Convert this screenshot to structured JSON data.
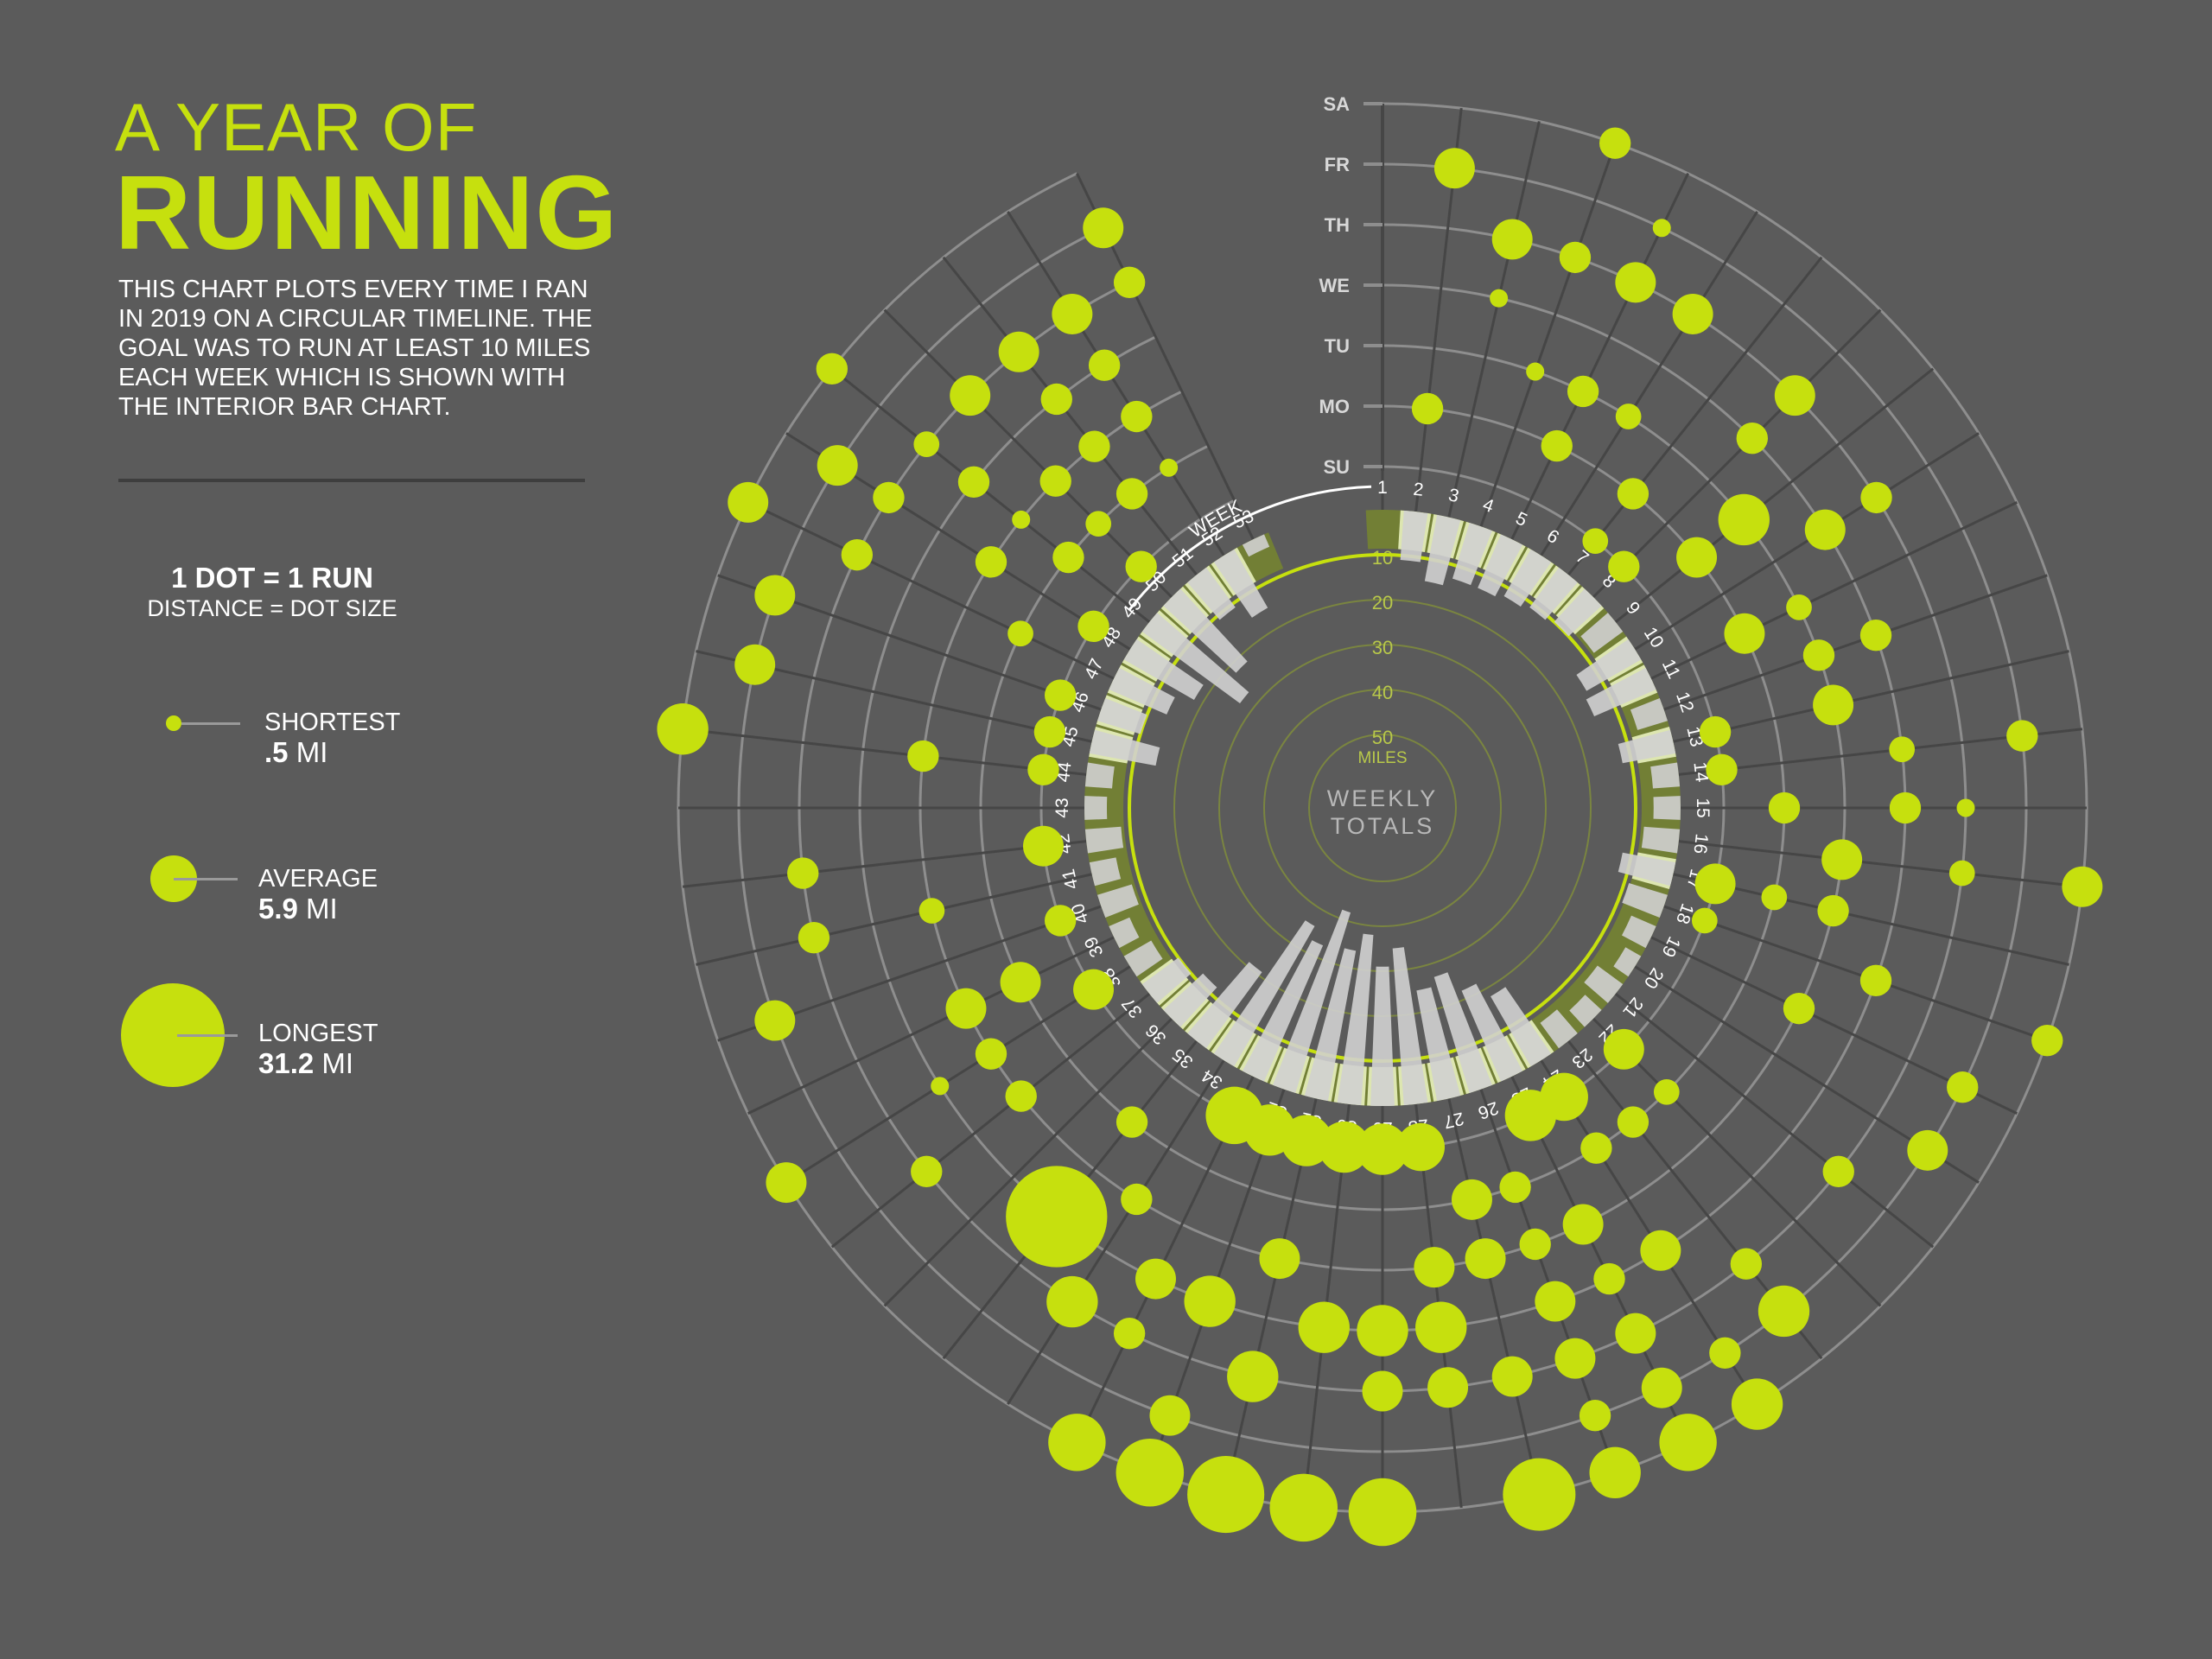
{
  "title": {
    "line1": "A YEAR OF",
    "line2": "RUNNING"
  },
  "intro": "THIS CHART PLOTS EVERY TIME I RAN IN 2019 ON A CIRCULAR TIMELINE. THE GOAL WAS TO RUN AT LEAST 10 MILES EACH WEEK WHICH IS SHOWN WITH THE INTERIOR BAR CHART.",
  "legend": {
    "heading": "1 DOT = 1 RUN",
    "subheading": "DISTANCE = DOT SIZE",
    "items": [
      {
        "label": "SHORTEST",
        "value_num": ".5",
        "value_unit": "MI"
      },
      {
        "label": "AVERAGE",
        "value_num": "5.9",
        "value_unit": "MI"
      },
      {
        "label": "LONGEST",
        "value_num": "31.2",
        "value_unit": "MI"
      }
    ]
  },
  "colors": {
    "background": "#5b5b5b",
    "dot": "#c6e00e",
    "ring_band": "#dde6b0",
    "ring_dark": "#727f35",
    "weekly_bar": "#d0d0d0",
    "grid": "#8e8e8e"
  },
  "chart_data": {
    "type": "scatter",
    "subtitle": "WEEKLY TOTALS",
    "week_axis_label": "WEEK",
    "day_labels": [
      "SU",
      "MO",
      "TU",
      "WE",
      "TH",
      "FR",
      "SA"
    ],
    "weeks": [
      1,
      2,
      3,
      4,
      5,
      6,
      7,
      8,
      9,
      10,
      11,
      12,
      13,
      14,
      15,
      16,
      17,
      18,
      19,
      20,
      21,
      22,
      23,
      24,
      25,
      26,
      27,
      28,
      29,
      30,
      31,
      32,
      33,
      34,
      35,
      36,
      37,
      38,
      39,
      40,
      41,
      42,
      43,
      44,
      45,
      46,
      47,
      48,
      49,
      50,
      51,
      52,
      53
    ],
    "radial_axis": {
      "label": "MILES",
      "ticks": [
        10,
        20,
        30,
        40,
        50
      ],
      "goal": 10
    },
    "weekly_totals": [
      0,
      11,
      15,
      13,
      13,
      12,
      11,
      10,
      8,
      14,
      15,
      7,
      12,
      6,
      6,
      8,
      12,
      9,
      6,
      4,
      7,
      5,
      7,
      18,
      22,
      27,
      25,
      35,
      31,
      38,
      34,
      42,
      33,
      36,
      21,
      12,
      10,
      7,
      5,
      8,
      6,
      8,
      5,
      6,
      15,
      10,
      14,
      18,
      27,
      22,
      11,
      15,
      3
    ],
    "runs": [
      {
        "week": 2,
        "day": 1,
        "miles": 3
      },
      {
        "week": 2,
        "day": 5,
        "miles": 5
      },
      {
        "week": 3,
        "day": 3,
        "miles": 1
      },
      {
        "week": 3,
        "day": 4,
        "miles": 5
      },
      {
        "week": 4,
        "day": 2,
        "miles": 1
      },
      {
        "week": 4,
        "day": 4,
        "miles": 3
      },
      {
        "week": 4,
        "day": 6,
        "miles": 3
      },
      {
        "week": 5,
        "day": 1,
        "miles": 3
      },
      {
        "week": 5,
        "day": 2,
        "miles": 3
      },
      {
        "week": 5,
        "day": 4,
        "miles": 5
      },
      {
        "week": 5,
        "day": 5,
        "miles": 1
      },
      {
        "week": 6,
        "day": 2,
        "miles": 2
      },
      {
        "week": 6,
        "day": 4,
        "miles": 5
      },
      {
        "week": 7,
        "day": 0,
        "miles": 2
      },
      {
        "week": 7,
        "day": 1,
        "miles": 3
      },
      {
        "week": 8,
        "day": 0,
        "miles": 3
      },
      {
        "week": 8,
        "day": 3,
        "miles": 3
      },
      {
        "week": 8,
        "day": 4,
        "miles": 5
      },
      {
        "week": 9,
        "day": 1,
        "miles": 5
      },
      {
        "week": 9,
        "day": 2,
        "miles": 8
      },
      {
        "week": 10,
        "day": 3,
        "miles": 5
      },
      {
        "week": 10,
        "day": 4,
        "miles": 3
      },
      {
        "week": 11,
        "day": 1,
        "miles": 5
      },
      {
        "week": 11,
        "day": 2,
        "miles": 2
      },
      {
        "week": 12,
        "day": 2,
        "miles": 3
      },
      {
        "week": 12,
        "day": 3,
        "miles": 3
      },
      {
        "week": 13,
        "day": 0,
        "miles": 3
      },
      {
        "week": 13,
        "day": 2,
        "miles": 5
      },
      {
        "week": 14,
        "day": 0,
        "miles": 3
      },
      {
        "week": 14,
        "day": 3,
        "miles": 2
      },
      {
        "week": 14,
        "day": 5,
        "miles": 3
      },
      {
        "week": 15,
        "day": 1,
        "miles": 3
      },
      {
        "week": 15,
        "day": 3,
        "miles": 3
      },
      {
        "week": 15,
        "day": 4,
        "miles": 1
      },
      {
        "week": 16,
        "day": 2,
        "miles": 5
      },
      {
        "week": 16,
        "day": 4,
        "miles": 2
      },
      {
        "week": 16,
        "day": 6,
        "miles": 5
      },
      {
        "week": 17,
        "day": 0,
        "miles": 5
      },
      {
        "week": 17,
        "day": 1,
        "miles": 2
      },
      {
        "week": 17,
        "day": 2,
        "miles": 3
      },
      {
        "week": 18,
        "day": 0,
        "miles": 2
      },
      {
        "week": 18,
        "day": 3,
        "miles": 3
      },
      {
        "week": 18,
        "day": 6,
        "miles": 3
      },
      {
        "week": 19,
        "day": 2,
        "miles": 3
      },
      {
        "week": 19,
        "day": 5,
        "miles": 3
      },
      {
        "week": 20,
        "day": 5,
        "miles": 5
      },
      {
        "week": 21,
        "day": 4,
        "miles": 3
      },
      {
        "week": 22,
        "day": 0,
        "miles": 5
      },
      {
        "week": 22,
        "day": 1,
        "miles": 2
      },
      {
        "week": 23,
        "day": 1,
        "miles": 3
      },
      {
        "week": 23,
        "day": 4,
        "miles": 3
      },
      {
        "week": 23,
        "day": 5,
        "miles": 8
      },
      {
        "week": 24,
        "day": 0,
        "miles": 7
      },
      {
        "week": 24,
        "day": 1,
        "miles": 3
      },
      {
        "week": 24,
        "day": 3,
        "miles": 5
      },
      {
        "week": 24,
        "day": 5,
        "miles": 3
      },
      {
        "week": 24,
        "day": 6,
        "miles": 8
      },
      {
        "week": 25,
        "day": 0,
        "miles": 8
      },
      {
        "week": 25,
        "day": 2,
        "miles": 5
      },
      {
        "week": 25,
        "day": 3,
        "miles": 3
      },
      {
        "week": 25,
        "day": 4,
        "miles": 5
      },
      {
        "week": 25,
        "day": 5,
        "miles": 5
      },
      {
        "week": 25,
        "day": 6,
        "miles": 10
      },
      {
        "week": 26,
        "day": 1,
        "miles": 3
      },
      {
        "week": 26,
        "day": 2,
        "miles": 3
      },
      {
        "week": 26,
        "day": 3,
        "miles": 5
      },
      {
        "week": 26,
        "day": 4,
        "miles": 5
      },
      {
        "week": 26,
        "day": 5,
        "miles": 3
      },
      {
        "week": 26,
        "day": 6,
        "miles": 8
      },
      {
        "week": 27,
        "day": 1,
        "miles": 5
      },
      {
        "week": 27,
        "day": 2,
        "miles": 5
      },
      {
        "week": 27,
        "day": 4,
        "miles": 5
      },
      {
        "week": 27,
        "day": 6,
        "miles": 16
      },
      {
        "week": 28,
        "day": 0,
        "miles": 7
      },
      {
        "week": 28,
        "day": 2,
        "miles": 5
      },
      {
        "week": 28,
        "day": 3,
        "miles": 8
      },
      {
        "week": 28,
        "day": 4,
        "miles": 5
      },
      {
        "week": 29,
        "day": 0,
        "miles": 8
      },
      {
        "week": 29,
        "day": 3,
        "miles": 8
      },
      {
        "week": 29,
        "day": 4,
        "miles": 5
      },
      {
        "week": 29,
        "day": 6,
        "miles": 14
      },
      {
        "week": 30,
        "day": 0,
        "miles": 8
      },
      {
        "week": 30,
        "day": 3,
        "miles": 8
      },
      {
        "week": 30,
        "day": 6,
        "miles": 14
      },
      {
        "week": 31,
        "day": 0,
        "miles": 8
      },
      {
        "week": 31,
        "day": 2,
        "miles": 5
      },
      {
        "week": 31,
        "day": 4,
        "miles": 8
      },
      {
        "week": 31,
        "day": 6,
        "miles": 18
      },
      {
        "week": 32,
        "day": 0,
        "miles": 8
      },
      {
        "week": 32,
        "day": 3,
        "miles": 8
      },
      {
        "week": 32,
        "day": 5,
        "miles": 5
      },
      {
        "week": 32,
        "day": 6,
        "miles": 14
      },
      {
        "week": 33,
        "day": 0,
        "miles": 10
      },
      {
        "week": 33,
        "day": 3,
        "miles": 5
      },
      {
        "week": 33,
        "day": 4,
        "miles": 3
      },
      {
        "week": 33,
        "day": 6,
        "miles": 10
      },
      {
        "week": 34,
        "day": 2,
        "miles": 3
      },
      {
        "week": 34,
        "day": 4,
        "miles": 8
      },
      {
        "week": 35,
        "day": 1,
        "miles": 3
      },
      {
        "week": 35,
        "day": 3,
        "miles": 31.2
      },
      {
        "week": 37,
        "day": 2,
        "miles": 3
      },
      {
        "week": 37,
        "day": 4,
        "miles": 3
      },
      {
        "week": 38,
        "day": 0,
        "miles": 5
      },
      {
        "week": 38,
        "day": 2,
        "miles": 3
      },
      {
        "week": 38,
        "day": 3,
        "miles": 1
      },
      {
        "week": 38,
        "day": 6,
        "miles": 5
      },
      {
        "week": 39,
        "day": 1,
        "miles": 5
      },
      {
        "week": 39,
        "day": 2,
        "miles": 5
      },
      {
        "week": 40,
        "day": 0,
        "miles": 3
      },
      {
        "week": 40,
        "day": 5,
        "miles": 5
      },
      {
        "week": 41,
        "day": 2,
        "miles": 2
      },
      {
        "week": 41,
        "day": 4,
        "miles": 3
      },
      {
        "week": 42,
        "day": 0,
        "miles": 5
      },
      {
        "week": 42,
        "day": 4,
        "miles": 3
      },
      {
        "week": 44,
        "day": 0,
        "miles": 3
      },
      {
        "week": 44,
        "day": 2,
        "miles": 3
      },
      {
        "week": 44,
        "day": 6,
        "miles": 8
      },
      {
        "week": 45,
        "day": 0,
        "miles": 3
      },
      {
        "week": 45,
        "day": 5,
        "miles": 5
      },
      {
        "week": 46,
        "day": 0,
        "miles": 3
      },
      {
        "week": 46,
        "day": 5,
        "miles": 5
      },
      {
        "week": 47,
        "day": 1,
        "miles": 2
      },
      {
        "week": 47,
        "day": 4,
        "miles": 3
      },
      {
        "week": 47,
        "day": 6,
        "miles": 5
      },
      {
        "week": 48,
        "day": 0,
        "miles": 3
      },
      {
        "week": 48,
        "day": 2,
        "miles": 3
      },
      {
        "week": 48,
        "day": 4,
        "miles": 3
      },
      {
        "week": 48,
        "day": 5,
        "miles": 5
      },
      {
        "week": 49,
        "day": 1,
        "miles": 3
      },
      {
        "week": 49,
        "day": 2,
        "miles": 1
      },
      {
        "week": 49,
        "day": 3,
        "miles": 3
      },
      {
        "week": 49,
        "day": 4,
        "miles": 2
      },
      {
        "week": 49,
        "day": 6,
        "miles": 3
      },
      {
        "week": 50,
        "day": 0,
        "miles": 3
      },
      {
        "week": 50,
        "day": 1,
        "miles": 2
      },
      {
        "week": 50,
        "day": 2,
        "miles": 3
      },
      {
        "week": 50,
        "day": 4,
        "miles": 5
      },
      {
        "week": 51,
        "day": 1,
        "miles": 3
      },
      {
        "week": 51,
        "day": 2,
        "miles": 3
      },
      {
        "week": 51,
        "day": 3,
        "miles": 3
      },
      {
        "week": 51,
        "day": 4,
        "miles": 5
      },
      {
        "week": 52,
        "day": 1,
        "miles": 1
      },
      {
        "week": 52,
        "day": 2,
        "miles": 3
      },
      {
        "week": 52,
        "day": 3,
        "miles": 3
      },
      {
        "week": 52,
        "day": 4,
        "miles": 5
      },
      {
        "week": 53,
        "day": 4,
        "miles": 3
      },
      {
        "week": 53,
        "day": 5,
        "miles": 5
      }
    ]
  }
}
